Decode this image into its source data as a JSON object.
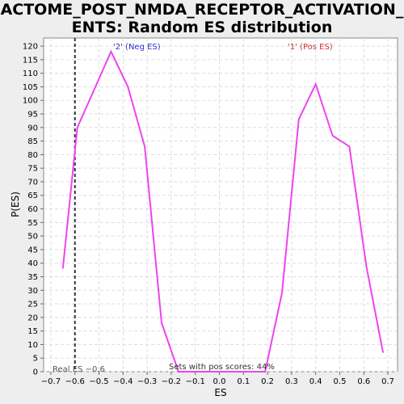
{
  "chart_data": {
    "type": "line",
    "title_lines": [
      "REACTOME_POST_NMDA_RECEPTOR_ACTIVATION_EV",
      "ENTS: Random ES distribution"
    ],
    "xlabel": "ES",
    "ylabel": "P(ES)",
    "xlim": [
      -0.73,
      0.74
    ],
    "ylim": [
      0,
      123
    ],
    "xticks": [
      -0.7,
      -0.6,
      -0.5,
      -0.4,
      -0.3,
      -0.2,
      -0.1,
      0.0,
      0.1,
      0.2,
      0.3,
      0.4,
      0.5,
      0.6,
      0.7
    ],
    "xtick_labels": [
      "−0.7",
      "−0.6",
      "−0.5",
      "−0.4",
      "−0.3",
      "−0.2",
      "−0.1",
      "0.0",
      "0.1",
      "0.2",
      "0.3",
      "0.4",
      "0.5",
      "0.6",
      "0.7"
    ],
    "yticks": [
      0,
      5,
      10,
      15,
      20,
      25,
      30,
      35,
      40,
      45,
      50,
      55,
      60,
      65,
      70,
      75,
      80,
      85,
      90,
      95,
      100,
      105,
      110,
      115,
      120
    ],
    "grid": true,
    "series": [
      {
        "color": "#ee44ee",
        "x": [
          -0.65,
          -0.59,
          -0.52,
          -0.45,
          -0.38,
          -0.31,
          -0.24,
          -0.17,
          -0.1,
          -0.03,
          0.05,
          0.12,
          0.19,
          0.26,
          0.33,
          0.4,
          0.47,
          0.54,
          0.61,
          0.68
        ],
        "y": [
          38,
          90,
          104,
          118,
          105,
          83,
          18,
          0,
          0,
          0,
          0,
          0,
          0,
          29,
          93,
          106,
          87,
          83,
          39,
          7
        ]
      }
    ],
    "annotations": {
      "neg_label": "'2' (Neg ES)",
      "pos_label": "'1' (Pos ES)",
      "real_es_label": "Real ES −0.6",
      "pos_scores_label": "Sets with pos scores: 44%",
      "neg_color": "#3333cc",
      "pos_color": "#cc3333",
      "real_es_color": "#555555"
    },
    "real_es": -0.6
  }
}
